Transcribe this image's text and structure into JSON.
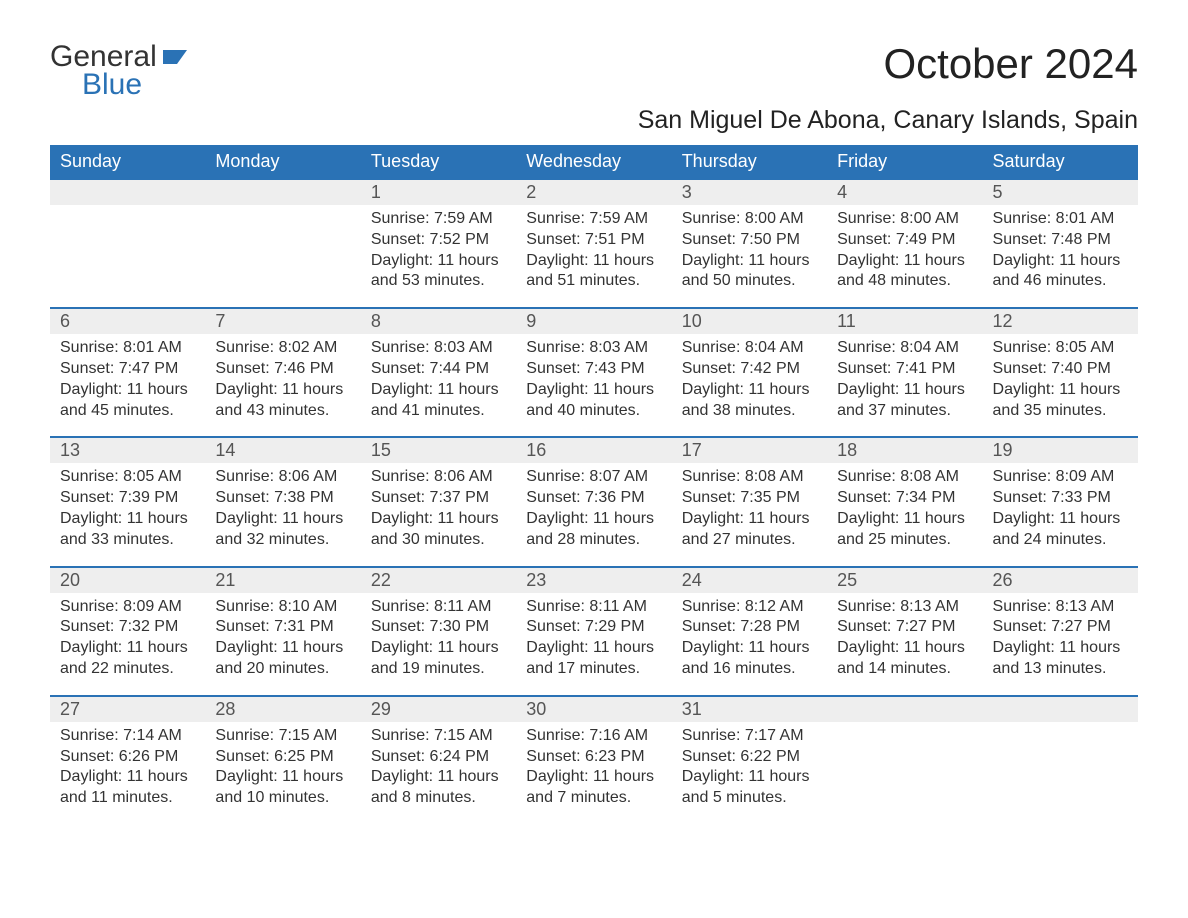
{
  "logo": {
    "text_general": "General",
    "text_blue": "Blue",
    "shape_color": "#2a72b5"
  },
  "title": "October 2024",
  "location": "San Miguel De Abona, Canary Islands, Spain",
  "colors": {
    "header_bg": "#2a72b5",
    "header_text": "#ffffff",
    "daynum_bg": "#eeeeee",
    "border_top": "#2a72b5",
    "body_text": "#333333"
  },
  "day_headers": [
    "Sunday",
    "Monday",
    "Tuesday",
    "Wednesday",
    "Thursday",
    "Friday",
    "Saturday"
  ],
  "weeks": [
    [
      null,
      null,
      {
        "n": "1",
        "sr": "Sunrise: 7:59 AM",
        "ss": "Sunset: 7:52 PM",
        "d1": "Daylight: 11 hours",
        "d2": "and 53 minutes."
      },
      {
        "n": "2",
        "sr": "Sunrise: 7:59 AM",
        "ss": "Sunset: 7:51 PM",
        "d1": "Daylight: 11 hours",
        "d2": "and 51 minutes."
      },
      {
        "n": "3",
        "sr": "Sunrise: 8:00 AM",
        "ss": "Sunset: 7:50 PM",
        "d1": "Daylight: 11 hours",
        "d2": "and 50 minutes."
      },
      {
        "n": "4",
        "sr": "Sunrise: 8:00 AM",
        "ss": "Sunset: 7:49 PM",
        "d1": "Daylight: 11 hours",
        "d2": "and 48 minutes."
      },
      {
        "n": "5",
        "sr": "Sunrise: 8:01 AM",
        "ss": "Sunset: 7:48 PM",
        "d1": "Daylight: 11 hours",
        "d2": "and 46 minutes."
      }
    ],
    [
      {
        "n": "6",
        "sr": "Sunrise: 8:01 AM",
        "ss": "Sunset: 7:47 PM",
        "d1": "Daylight: 11 hours",
        "d2": "and 45 minutes."
      },
      {
        "n": "7",
        "sr": "Sunrise: 8:02 AM",
        "ss": "Sunset: 7:46 PM",
        "d1": "Daylight: 11 hours",
        "d2": "and 43 minutes."
      },
      {
        "n": "8",
        "sr": "Sunrise: 8:03 AM",
        "ss": "Sunset: 7:44 PM",
        "d1": "Daylight: 11 hours",
        "d2": "and 41 minutes."
      },
      {
        "n": "9",
        "sr": "Sunrise: 8:03 AM",
        "ss": "Sunset: 7:43 PM",
        "d1": "Daylight: 11 hours",
        "d2": "and 40 minutes."
      },
      {
        "n": "10",
        "sr": "Sunrise: 8:04 AM",
        "ss": "Sunset: 7:42 PM",
        "d1": "Daylight: 11 hours",
        "d2": "and 38 minutes."
      },
      {
        "n": "11",
        "sr": "Sunrise: 8:04 AM",
        "ss": "Sunset: 7:41 PM",
        "d1": "Daylight: 11 hours",
        "d2": "and 37 minutes."
      },
      {
        "n": "12",
        "sr": "Sunrise: 8:05 AM",
        "ss": "Sunset: 7:40 PM",
        "d1": "Daylight: 11 hours",
        "d2": "and 35 minutes."
      }
    ],
    [
      {
        "n": "13",
        "sr": "Sunrise: 8:05 AM",
        "ss": "Sunset: 7:39 PM",
        "d1": "Daylight: 11 hours",
        "d2": "and 33 minutes."
      },
      {
        "n": "14",
        "sr": "Sunrise: 8:06 AM",
        "ss": "Sunset: 7:38 PM",
        "d1": "Daylight: 11 hours",
        "d2": "and 32 minutes."
      },
      {
        "n": "15",
        "sr": "Sunrise: 8:06 AM",
        "ss": "Sunset: 7:37 PM",
        "d1": "Daylight: 11 hours",
        "d2": "and 30 minutes."
      },
      {
        "n": "16",
        "sr": "Sunrise: 8:07 AM",
        "ss": "Sunset: 7:36 PM",
        "d1": "Daylight: 11 hours",
        "d2": "and 28 minutes."
      },
      {
        "n": "17",
        "sr": "Sunrise: 8:08 AM",
        "ss": "Sunset: 7:35 PM",
        "d1": "Daylight: 11 hours",
        "d2": "and 27 minutes."
      },
      {
        "n": "18",
        "sr": "Sunrise: 8:08 AM",
        "ss": "Sunset: 7:34 PM",
        "d1": "Daylight: 11 hours",
        "d2": "and 25 minutes."
      },
      {
        "n": "19",
        "sr": "Sunrise: 8:09 AM",
        "ss": "Sunset: 7:33 PM",
        "d1": "Daylight: 11 hours",
        "d2": "and 24 minutes."
      }
    ],
    [
      {
        "n": "20",
        "sr": "Sunrise: 8:09 AM",
        "ss": "Sunset: 7:32 PM",
        "d1": "Daylight: 11 hours",
        "d2": "and 22 minutes."
      },
      {
        "n": "21",
        "sr": "Sunrise: 8:10 AM",
        "ss": "Sunset: 7:31 PM",
        "d1": "Daylight: 11 hours",
        "d2": "and 20 minutes."
      },
      {
        "n": "22",
        "sr": "Sunrise: 8:11 AM",
        "ss": "Sunset: 7:30 PM",
        "d1": "Daylight: 11 hours",
        "d2": "and 19 minutes."
      },
      {
        "n": "23",
        "sr": "Sunrise: 8:11 AM",
        "ss": "Sunset: 7:29 PM",
        "d1": "Daylight: 11 hours",
        "d2": "and 17 minutes."
      },
      {
        "n": "24",
        "sr": "Sunrise: 8:12 AM",
        "ss": "Sunset: 7:28 PM",
        "d1": "Daylight: 11 hours",
        "d2": "and 16 minutes."
      },
      {
        "n": "25",
        "sr": "Sunrise: 8:13 AM",
        "ss": "Sunset: 7:27 PM",
        "d1": "Daylight: 11 hours",
        "d2": "and 14 minutes."
      },
      {
        "n": "26",
        "sr": "Sunrise: 8:13 AM",
        "ss": "Sunset: 7:27 PM",
        "d1": "Daylight: 11 hours",
        "d2": "and 13 minutes."
      }
    ],
    [
      {
        "n": "27",
        "sr": "Sunrise: 7:14 AM",
        "ss": "Sunset: 6:26 PM",
        "d1": "Daylight: 11 hours",
        "d2": "and 11 minutes."
      },
      {
        "n": "28",
        "sr": "Sunrise: 7:15 AM",
        "ss": "Sunset: 6:25 PM",
        "d1": "Daylight: 11 hours",
        "d2": "and 10 minutes."
      },
      {
        "n": "29",
        "sr": "Sunrise: 7:15 AM",
        "ss": "Sunset: 6:24 PM",
        "d1": "Daylight: 11 hours",
        "d2": "and 8 minutes."
      },
      {
        "n": "30",
        "sr": "Sunrise: 7:16 AM",
        "ss": "Sunset: 6:23 PM",
        "d1": "Daylight: 11 hours",
        "d2": "and 7 minutes."
      },
      {
        "n": "31",
        "sr": "Sunrise: 7:17 AM",
        "ss": "Sunset: 6:22 PM",
        "d1": "Daylight: 11 hours",
        "d2": "and 5 minutes."
      },
      null,
      null
    ]
  ]
}
